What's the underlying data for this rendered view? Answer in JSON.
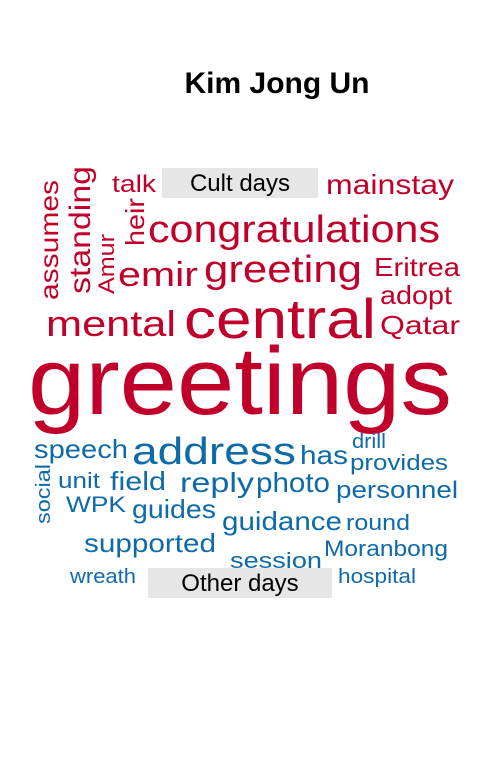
{
  "chart_data": {
    "type": "wordcloud",
    "title": "Kim Jong Un",
    "colors": {
      "cult_days": "#c0002a",
      "other_days": "#0f6aa8",
      "label_box": "#e6e6e6",
      "label_text": "#000000",
      "title": "#000000"
    },
    "groups": [
      {
        "name": "Cult days",
        "words": [
          "greetings",
          "central",
          "congratulations",
          "greeting",
          "mental",
          "emir",
          "mainstay",
          "Eritrea",
          "adopt",
          "Qatar",
          "heir",
          "standing",
          "assumes",
          "talk",
          "Amur"
        ]
      },
      {
        "name": "Other days",
        "words": [
          "address",
          "speech",
          "has",
          "reply",
          "photo",
          "field",
          "unit",
          "drill",
          "provides",
          "personnel",
          "social",
          "WPK",
          "guides",
          "guidance",
          "round",
          "supported",
          "session",
          "Moranbong",
          "wreath",
          "hospital"
        ]
      }
    ]
  }
}
